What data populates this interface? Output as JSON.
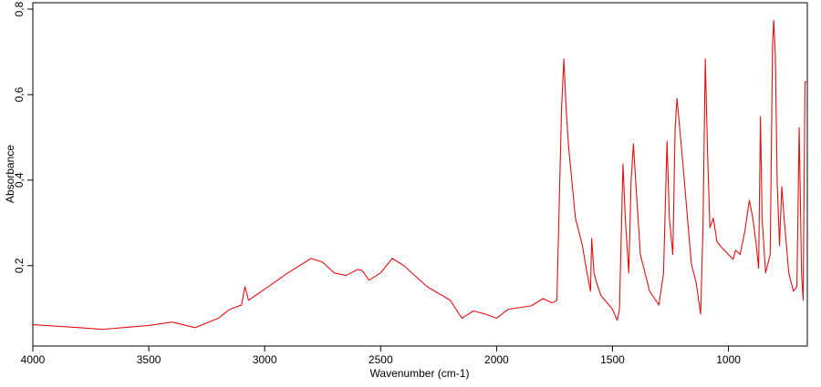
{
  "chart_data": {
    "type": "line",
    "xlabel": "Wavenumber (cm-1)",
    "ylabel": "Absorbance",
    "xlim": [
      4000,
      660
    ],
    "ylim": [
      0.012,
      0.815
    ],
    "xticks": [
      4000,
      3500,
      3000,
      2500,
      2000,
      1500,
      1000
    ],
    "yticks": [
      {
        "value": 0.2,
        "label": "0,2"
      },
      {
        "value": 0.4,
        "label": "0,4"
      },
      {
        "value": 0.6,
        "label": "0,6"
      },
      {
        "value": 0.8,
        "label": "0,8"
      }
    ],
    "series": [
      {
        "color": "#e01010",
        "x": [
          4000,
          3800,
          3700,
          3500,
          3400,
          3300,
          3200,
          3150,
          3100,
          3085,
          3070,
          3000,
          2900,
          2800,
          2750,
          2700,
          2650,
          2600,
          2580,
          2550,
          2500,
          2450,
          2400,
          2300,
          2200,
          2150,
          2100,
          2050,
          2000,
          1950,
          1850,
          1800,
          1760,
          1740,
          1720,
          1710,
          1700,
          1690,
          1660,
          1630,
          1610,
          1595,
          1590,
          1580,
          1570,
          1550,
          1500,
          1480,
          1470,
          1455,
          1445,
          1430,
          1420,
          1410,
          1400,
          1380,
          1340,
          1300,
          1280,
          1265,
          1255,
          1240,
          1230,
          1222,
          1200,
          1180,
          1160,
          1150,
          1140,
          1120,
          1110,
          1100,
          1090,
          1080,
          1065,
          1050,
          1030,
          1000,
          980,
          970,
          950,
          930,
          910,
          895,
          880,
          870,
          862,
          855,
          840,
          820,
          810,
          805,
          798,
          790,
          780,
          770,
          760,
          740,
          720,
          705,
          695,
          685,
          678,
          670,
          665
        ],
        "values": [
          0.062,
          0.055,
          0.051,
          0.06,
          0.068,
          0.055,
          0.077,
          0.098,
          0.108,
          0.151,
          0.119,
          0.145,
          0.183,
          0.217,
          0.208,
          0.183,
          0.177,
          0.191,
          0.189,
          0.166,
          0.183,
          0.217,
          0.2,
          0.151,
          0.119,
          0.077,
          0.094,
          0.087,
          0.077,
          0.098,
          0.106,
          0.123,
          0.113,
          0.119,
          0.566,
          0.683,
          0.566,
          0.481,
          0.311,
          0.247,
          0.183,
          0.14,
          0.264,
          0.183,
          0.162,
          0.13,
          0.098,
          0.072,
          0.098,
          0.438,
          0.311,
          0.183,
          0.396,
          0.485,
          0.396,
          0.226,
          0.14,
          0.108,
          0.183,
          0.491,
          0.311,
          0.226,
          0.523,
          0.591,
          0.46,
          0.332,
          0.204,
          0.183,
          0.162,
          0.087,
          0.289,
          0.683,
          0.46,
          0.289,
          0.311,
          0.257,
          0.243,
          0.226,
          0.215,
          0.236,
          0.226,
          0.279,
          0.353,
          0.311,
          0.247,
          0.194,
          0.549,
          0.311,
          0.183,
          0.226,
          0.715,
          0.774,
          0.694,
          0.396,
          0.247,
          0.385,
          0.311,
          0.183,
          0.14,
          0.151,
          0.523,
          0.183,
          0.119,
          0.63,
          0.63
        ]
      }
    ]
  }
}
